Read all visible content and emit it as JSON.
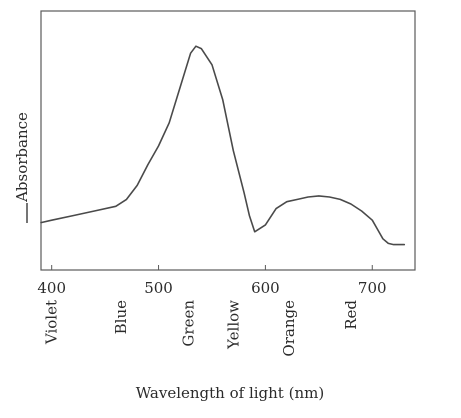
{
  "chart_data": {
    "type": "line",
    "title": "",
    "xlabel": "Wavelength of light (nm)",
    "ylabel": "Absorbance",
    "xlim": [
      390,
      740
    ],
    "ylim": [
      0,
      1
    ],
    "x_ticks": [
      "400",
      "500",
      "600",
      "700"
    ],
    "x_tick_values": [
      400,
      500,
      600,
      700
    ],
    "y_ticks": [],
    "grid": false,
    "legend": "none",
    "series": [
      {
        "x": [
          390,
          400,
          420,
          440,
          460,
          470,
          480,
          490,
          500,
          510,
          520,
          530,
          535,
          540,
          550,
          560,
          570,
          580,
          585,
          590,
          600,
          610,
          620,
          630,
          640,
          650,
          660,
          670,
          680,
          690,
          700,
          705,
          710,
          715,
          720,
          730
        ],
        "values": [
          0.17,
          0.18,
          0.2,
          0.22,
          0.24,
          0.27,
          0.33,
          0.42,
          0.5,
          0.6,
          0.75,
          0.9,
          0.93,
          0.92,
          0.85,
          0.7,
          0.48,
          0.3,
          0.2,
          0.13,
          0.16,
          0.23,
          0.26,
          0.27,
          0.28,
          0.285,
          0.28,
          0.27,
          0.25,
          0.22,
          0.18,
          0.14,
          0.1,
          0.08,
          0.075,
          0.075
        ]
      }
    ],
    "color_bands": [
      {
        "label": "Violet",
        "x": 400
      },
      {
        "label": "Blue",
        "x": 465
      },
      {
        "label": "Green",
        "x": 528
      },
      {
        "label": "Yellow",
        "x": 570
      },
      {
        "label": "Orange",
        "x": 622
      },
      {
        "label": "Red",
        "x": 680
      }
    ],
    "colors": {
      "line": "#4a4a4a",
      "frame": "#5a5a5a",
      "text": "#2b2b2b"
    }
  }
}
